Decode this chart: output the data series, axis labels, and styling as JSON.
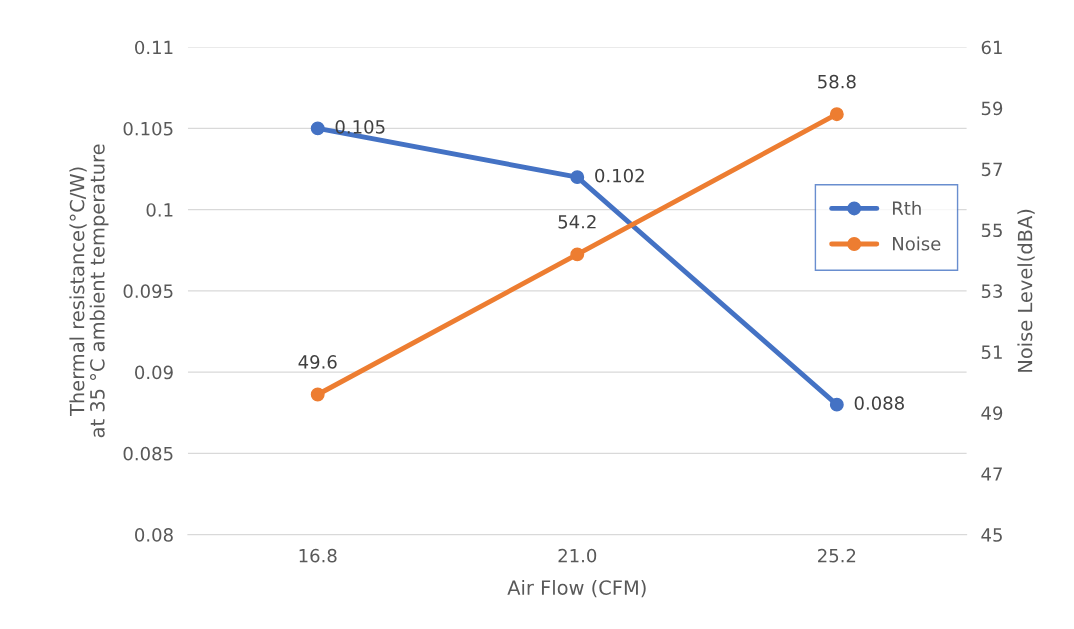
{
  "chart_data": {
    "type": "line",
    "categories": [
      "16.8",
      "21.0",
      "25.2"
    ],
    "series": [
      {
        "name": "Rth",
        "color": "#4472c4",
        "values": [
          0.105,
          0.102,
          0.088
        ]
      },
      {
        "name": "Noise",
        "color": "#ed7d31",
        "values": [
          49.6,
          54.2,
          58.8
        ],
        "axis": "y2"
      }
    ],
    "xlabel": "Air Flow (CFM)",
    "ylabel": "Thermal resistance(°C/W)\nat 35 °C ambient temperature",
    "y2label": "Noise Level(dBA)",
    "ylim": [
      0.08,
      0.11
    ],
    "yticks": [
      0.08,
      0.085,
      0.09,
      0.095,
      0.1,
      0.105,
      0.11
    ],
    "y2lim": [
      45,
      61
    ],
    "y2ticks": [
      45,
      47,
      49,
      51,
      53,
      55,
      57,
      59,
      61
    ],
    "grid": "y",
    "legend": "right",
    "marker": "circle",
    "line_style": "solid",
    "data_labels": true
  }
}
